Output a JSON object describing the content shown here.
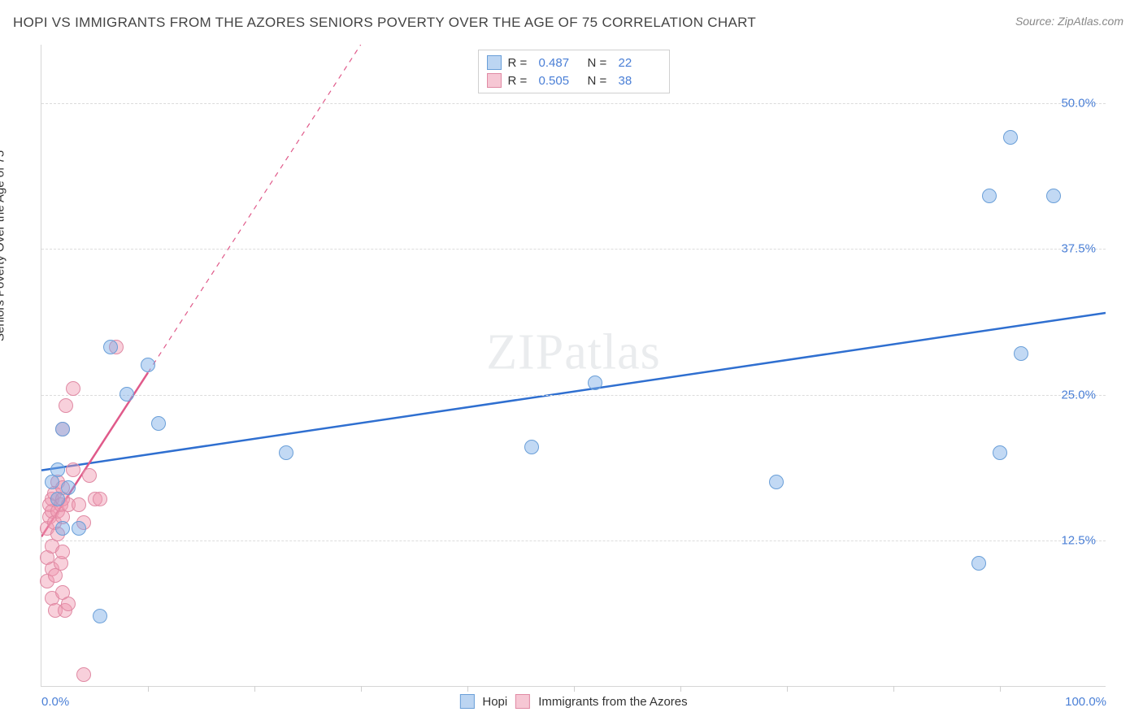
{
  "title": "HOPI VS IMMIGRANTS FROM THE AZORES SENIORS POVERTY OVER THE AGE OF 75 CORRELATION CHART",
  "source_label": "Source: ZipAtlas.com",
  "watermark": "ZIPatlas",
  "y_axis_label": "Seniors Poverty Over the Age of 75",
  "chart": {
    "type": "scatter",
    "x_range": [
      0,
      100
    ],
    "y_range": [
      0,
      55
    ],
    "background_color": "#ffffff",
    "grid_color": "#dcdcdc",
    "border_color": "#d6d6d6",
    "tick_label_color": "#4a7fd6",
    "axis_label_color": "#333333",
    "y_ticks": [
      12.5,
      25.0,
      37.5,
      50.0
    ],
    "y_tick_labels": [
      "12.5%",
      "25.0%",
      "37.5%",
      "50.0%"
    ],
    "x_ticks_minor": [
      10,
      20,
      30,
      40,
      50,
      60,
      70,
      80,
      90
    ],
    "x_tick_labels": [
      {
        "pos": 0,
        "text": "0.0%",
        "align": "left"
      },
      {
        "pos": 100,
        "text": "100.0%",
        "align": "right"
      }
    ]
  },
  "series": {
    "hopi": {
      "label": "Hopi",
      "color_fill": "rgba(120,170,230,0.45)",
      "color_stroke": "#6a9fd8",
      "swatch_fill": "#bcd5f2",
      "swatch_border": "#6a9fd8",
      "trend_color": "#2f6fd0",
      "trend_width": 2.5,
      "trend_dashed_after_x": 100,
      "R": "0.487",
      "N": "22",
      "trend": {
        "x1": 0,
        "y1": 18.5,
        "x2": 100,
        "y2": 32.0
      },
      "points": [
        [
          1,
          17.5
        ],
        [
          1.5,
          18.5
        ],
        [
          1.5,
          16
        ],
        [
          2,
          22
        ],
        [
          2,
          13.5
        ],
        [
          2.5,
          17
        ],
        [
          3.5,
          13.5
        ],
        [
          5.5,
          6
        ],
        [
          6.5,
          29
        ],
        [
          8,
          25
        ],
        [
          10,
          27.5
        ],
        [
          11,
          22.5
        ],
        [
          23,
          20
        ],
        [
          46,
          20.5
        ],
        [
          52,
          26
        ],
        [
          69,
          17.5
        ],
        [
          88,
          10.5
        ],
        [
          89,
          42
        ],
        [
          90,
          20
        ],
        [
          91,
          47
        ],
        [
          92,
          28.5
        ],
        [
          95,
          42
        ]
      ]
    },
    "azores": {
      "label": "Immigrants from the Azores",
      "color_fill": "rgba(240,150,175,0.45)",
      "color_stroke": "#e08aa4",
      "swatch_fill": "#f6c7d4",
      "swatch_border": "#e08aa4",
      "trend_color": "#e05a8a",
      "trend_width": 2.5,
      "trend_dashed_after_x": 10,
      "R": "0.505",
      "N": "38",
      "trend": {
        "x1": 0,
        "y1": 12.8,
        "x2": 30,
        "y2": 55
      },
      "points": [
        [
          0.5,
          9
        ],
        [
          0.5,
          11
        ],
        [
          0.5,
          13.5
        ],
        [
          0.8,
          14.5
        ],
        [
          0.8,
          15.5
        ],
        [
          1,
          7.5
        ],
        [
          1,
          10
        ],
        [
          1,
          12
        ],
        [
          1,
          15
        ],
        [
          1,
          16
        ],
        [
          1.2,
          14
        ],
        [
          1.2,
          16.5
        ],
        [
          1.3,
          6.5
        ],
        [
          1.3,
          9.5
        ],
        [
          1.5,
          15
        ],
        [
          1.5,
          13
        ],
        [
          1.5,
          17.5
        ],
        [
          1.8,
          10.5
        ],
        [
          1.8,
          15.5
        ],
        [
          2,
          8
        ],
        [
          2,
          11.5
        ],
        [
          2,
          14.5
        ],
        [
          2,
          16
        ],
        [
          2,
          17
        ],
        [
          2,
          22
        ],
        [
          2.2,
          6.5
        ],
        [
          2.3,
          24
        ],
        [
          2.5,
          15.5
        ],
        [
          2.5,
          7
        ],
        [
          3,
          18.5
        ],
        [
          3,
          25.5
        ],
        [
          3.5,
          15.5
        ],
        [
          4,
          14
        ],
        [
          4.5,
          18
        ],
        [
          5,
          16
        ],
        [
          5.5,
          16
        ],
        [
          7,
          29
        ],
        [
          4,
          1
        ]
      ]
    }
  },
  "legend_top": {
    "heading_r": "R =",
    "heading_n": "N ="
  }
}
